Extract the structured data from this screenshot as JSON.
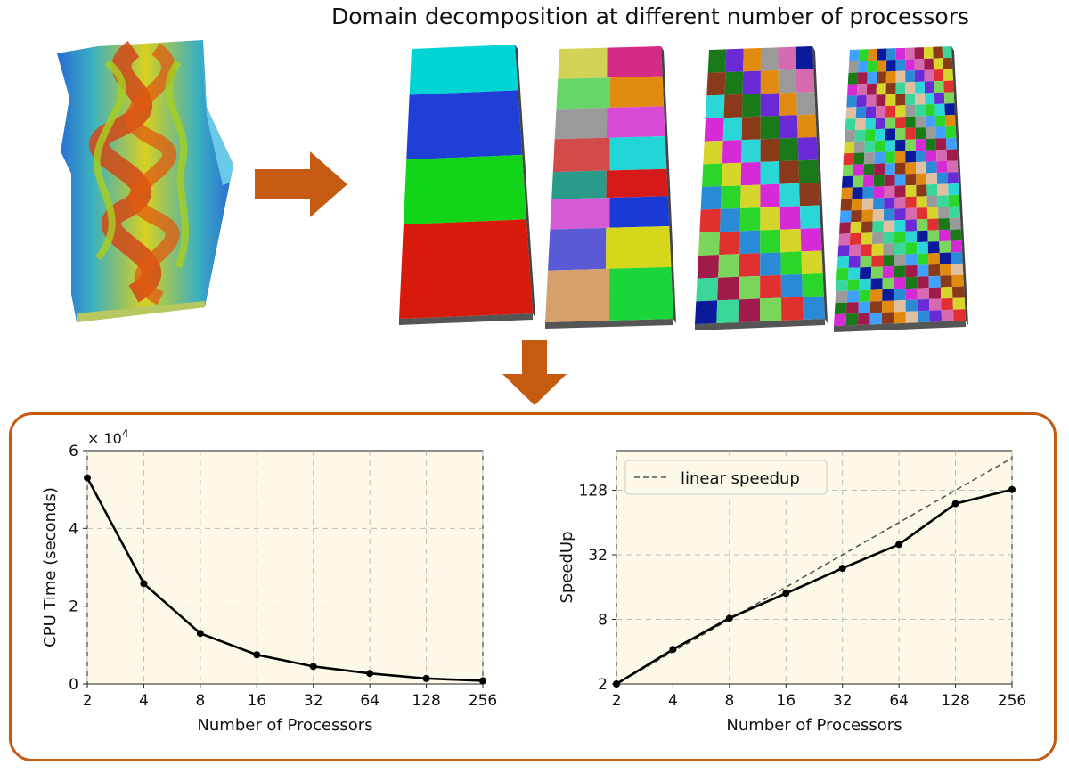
{
  "title": "Domain decomposition at different number of processors",
  "decomposition_views": [
    {
      "name": "panel-4-domains",
      "tiles": [
        "#00d4d4",
        "#1f3fd6",
        "#12d51a",
        "#d81a0c"
      ]
    },
    {
      "name": "panel-16-domains",
      "tiles": [
        "#d2d256",
        "#d62a86",
        "#66d66a",
        "#e08a10",
        "#9a9a9a",
        "#d84ad6",
        "#d24a4a",
        "#20d6d6",
        "#2a9a8a",
        "#d61a1a",
        "#d65ad6",
        "#1a3ad6",
        "#5a5ad6",
        "#d6d61a",
        "#d6a06a",
        "#1ad63a"
      ]
    },
    {
      "name": "panel-64-domains",
      "palette": [
        "#e03030",
        "#2a8ad6",
        "#2ad62a",
        "#d6d62a",
        "#d62ad6",
        "#2ad6d6",
        "#8a3a1a",
        "#1a7a1a",
        "#6a2ad6",
        "#e08a10",
        "#9a9a9a",
        "#d66ab0",
        "#0a1a9a",
        "#3ad69a",
        "#a01a4a",
        "#7ad65a"
      ]
    },
    {
      "name": "panel-256-domains",
      "palette": [
        "#e03030",
        "#2a8ad6",
        "#2ad62a",
        "#d6d62a",
        "#d62ad6",
        "#2ad6d6",
        "#8a3a1a",
        "#1a7a1a",
        "#6a2ad6",
        "#e08a10",
        "#9a9a9a",
        "#d66ab0",
        "#0a1a9a",
        "#3ad69a",
        "#a01a4a",
        "#7ad65a",
        "#e0c0a0",
        "#40a0ff"
      ]
    }
  ],
  "arrow_color": "#c55a11",
  "panel_border_color": "#c55a11",
  "chart_data": [
    {
      "type": "line",
      "title": "",
      "xlabel": "Number of Processors",
      "ylabel": "CPU Time (seconds)",
      "x": [
        2,
        4,
        8,
        16,
        32,
        64,
        128,
        256
      ],
      "x_scale": "log2",
      "y_multiplier_label": "× 10",
      "y_multiplier_exp": "4",
      "yticks": [
        0,
        2,
        4,
        6
      ],
      "ylim": [
        0,
        6
      ],
      "series": [
        {
          "values": [
            5.3,
            2.58,
            1.3,
            0.75,
            0.45,
            0.27,
            0.14,
            0.08
          ],
          "color": "#000000"
        }
      ],
      "grid": true,
      "background": "#fdf8e8"
    },
    {
      "type": "line",
      "title": "",
      "xlabel": "Number of Processors",
      "ylabel": "SpeedUp",
      "x": [
        2,
        4,
        8,
        16,
        32,
        64,
        128,
        256
      ],
      "x_scale": "log2",
      "y_scale": "log2",
      "yticks": [
        2,
        8,
        32,
        128
      ],
      "ylim": [
        2,
        300
      ],
      "series": [
        {
          "values": [
            2,
            4.2,
            8.2,
            14,
            24,
            40,
            96,
            130
          ],
          "color": "#000000"
        },
        {
          "name": "linear speedup",
          "values": [
            2,
            4,
            8,
            16,
            32,
            64,
            128,
            256
          ],
          "style": "dashed",
          "color": "#555555"
        }
      ],
      "legend": "top-left",
      "grid": true,
      "background": "#fdf8e8"
    }
  ]
}
